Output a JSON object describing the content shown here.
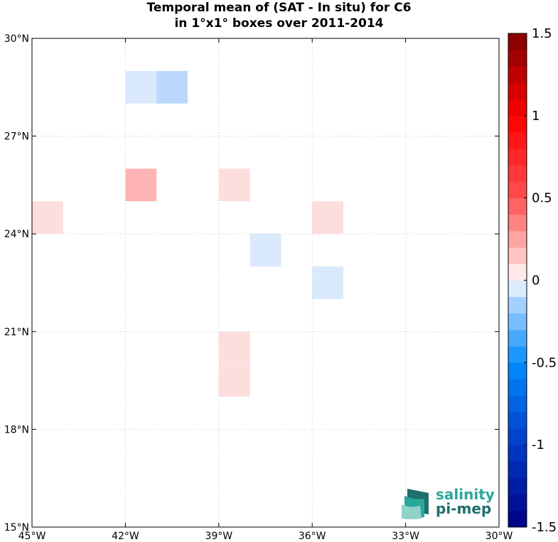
{
  "chart_data": {
    "type": "heatmap",
    "title_line1": "Temporal mean of (SAT - In situ) for C6",
    "title_line2": "in 1°x1° boxes over 2011-2014",
    "x_ticks": [
      {
        "value": -45,
        "label": "45°W"
      },
      {
        "value": -42,
        "label": "42°W"
      },
      {
        "value": -39,
        "label": "39°W"
      },
      {
        "value": -36,
        "label": "36°W"
      },
      {
        "value": -33,
        "label": "33°W"
      },
      {
        "value": -30,
        "label": "30°W"
      }
    ],
    "y_ticks": [
      {
        "value": 15,
        "label": "15°N"
      },
      {
        "value": 18,
        "label": "18°N"
      },
      {
        "value": 21,
        "label": "21°N"
      },
      {
        "value": 24,
        "label": "24°N"
      },
      {
        "value": 27,
        "label": "27°N"
      },
      {
        "value": 30,
        "label": "30°N"
      }
    ],
    "xlim": [
      -45,
      -30
    ],
    "ylim": [
      15,
      30
    ],
    "grid": "dotted",
    "boxes": [
      {
        "lon": -42,
        "lat": 28,
        "value": -0.15
      },
      {
        "lon": -41,
        "lat": 28,
        "value": -0.3
      },
      {
        "lon": -42,
        "lat": 25,
        "value": 0.35
      },
      {
        "lon": -39,
        "lat": 25,
        "value": 0.15
      },
      {
        "lon": -45,
        "lat": 24,
        "value": 0.15
      },
      {
        "lon": -36,
        "lat": 24,
        "value": 0.15
      },
      {
        "lon": -38,
        "lat": 23,
        "value": -0.15
      },
      {
        "lon": -36,
        "lat": 22,
        "value": -0.15
      },
      {
        "lon": -39,
        "lat": 20,
        "value": 0.15
      },
      {
        "lon": -39,
        "lat": 19,
        "value": 0.15
      }
    ],
    "colorbar": {
      "vmin": -1.5,
      "vmax": 1.5,
      "levels": 30,
      "ticks": [
        {
          "value": 1.5,
          "label": "1.5"
        },
        {
          "value": 1,
          "label": "1"
        },
        {
          "value": 0.5,
          "label": "0.5"
        },
        {
          "value": 0,
          "label": "0"
        },
        {
          "value": -0.5,
          "label": "-0.5"
        },
        {
          "value": -1,
          "label": "-1"
        },
        {
          "value": -1.5,
          "label": "-1.5"
        }
      ]
    }
  },
  "logo": {
    "line1": "salinity",
    "line2": "pi-mep",
    "color1": "#2aa79b",
    "color2": "#1f6f6c"
  }
}
